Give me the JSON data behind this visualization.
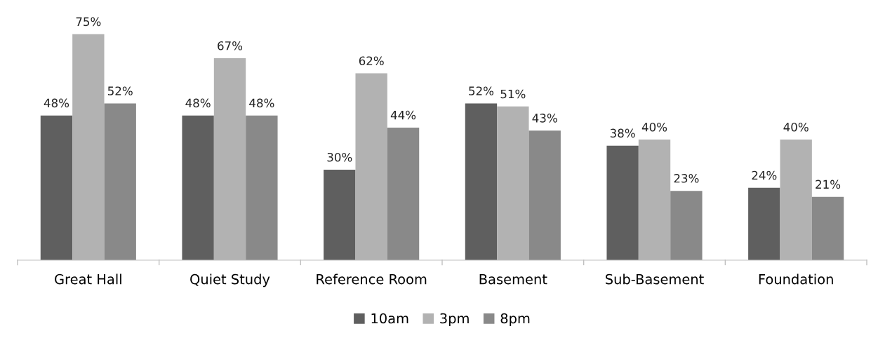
{
  "chart_data": {
    "type": "bar",
    "categories": [
      "Great Hall",
      "Quiet Study",
      "Reference Room",
      "Basement",
      "Sub-Basement",
      "Foundation"
    ],
    "series": [
      {
        "name": "10am",
        "color": "#5f5f5f",
        "values": [
          48,
          48,
          30,
          52,
          38,
          24
        ],
        "value_labels": [
          "48%",
          "48%",
          "30%",
          "52%",
          "38%",
          "24%"
        ]
      },
      {
        "name": "3pm",
        "color": "#b2b2b2",
        "values": [
          75,
          67,
          62,
          51,
          40,
          40
        ],
        "value_labels": [
          "75%",
          "67%",
          "62%",
          "51%",
          "40%",
          "40%"
        ]
      },
      {
        "name": "8pm",
        "color": "#898989",
        "values": [
          52,
          48,
          44,
          43,
          23,
          21
        ],
        "value_labels": [
          "52%",
          "48%",
          "44%",
          "43%",
          "23%",
          "21%"
        ]
      }
    ],
    "legend": "bottom",
    "grid": false
  }
}
